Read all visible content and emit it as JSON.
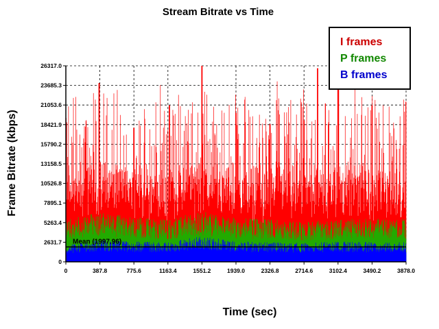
{
  "chart_data": {
    "type": "area",
    "title": "Stream Bitrate vs Time",
    "xlabel": "Time (sec)",
    "ylabel": "Frame Bitrate (kbps)",
    "xlim": [
      0,
      3878.0
    ],
    "ylim": [
      0,
      26317.0
    ],
    "x_ticks": [
      "0",
      "387.8",
      "775.6",
      "1163.4",
      "1551.2",
      "1939.0",
      "2326.8",
      "2714.6",
      "3102.4",
      "3490.2",
      "3878.0"
    ],
    "y_ticks": [
      "0",
      "2631.7",
      "5263.4",
      "7895.1",
      "10526.8",
      "13158.5",
      "15790.2",
      "18421.9",
      "21053.6",
      "23685.3",
      "26317.0"
    ],
    "grid": true,
    "legend_position": "top-right",
    "colors": {
      "I": "#ff0000",
      "P": "#22aa00",
      "B": "#0000ff",
      "legend_I": "#cc0000",
      "legend_P": "#118800",
      "legend_B": "#0000cc"
    },
    "mean_label": "Mean (1997.96)",
    "mean_value": 1997.96,
    "series": [
      {
        "name": "I frames",
        "peak_x": [
          0,
          380,
          775,
          1180,
          1551,
          1939,
          2326,
          2714,
          2870,
          3102,
          3490,
          3878
        ],
        "peak_values": [
          7000,
          24000,
          18000,
          21000,
          26317,
          20000,
          18500,
          19000,
          26000,
          24500,
          21000,
          21500
        ]
      },
      {
        "name": "P frames",
        "x": [
          0,
          387.8,
          775.6,
          1163.4,
          1551.2,
          1939.0,
          2326.8,
          2714.6,
          3102.4,
          3490.2,
          3878.0
        ],
        "values": [
          5000,
          5800,
          5300,
          5000,
          5900,
          5100,
          5000,
          4700,
          5000,
          5100,
          5000
        ]
      },
      {
        "name": "B frames",
        "x": [
          0,
          387.8,
          775.6,
          1163.4,
          1551.2,
          1939.0,
          2326.8,
          2714.6,
          3102.4,
          3490.2,
          3878.0
        ],
        "values": [
          2000,
          2600,
          2400,
          2300,
          3000,
          2400,
          2300,
          2200,
          2400,
          2300,
          2300
        ]
      }
    ]
  }
}
